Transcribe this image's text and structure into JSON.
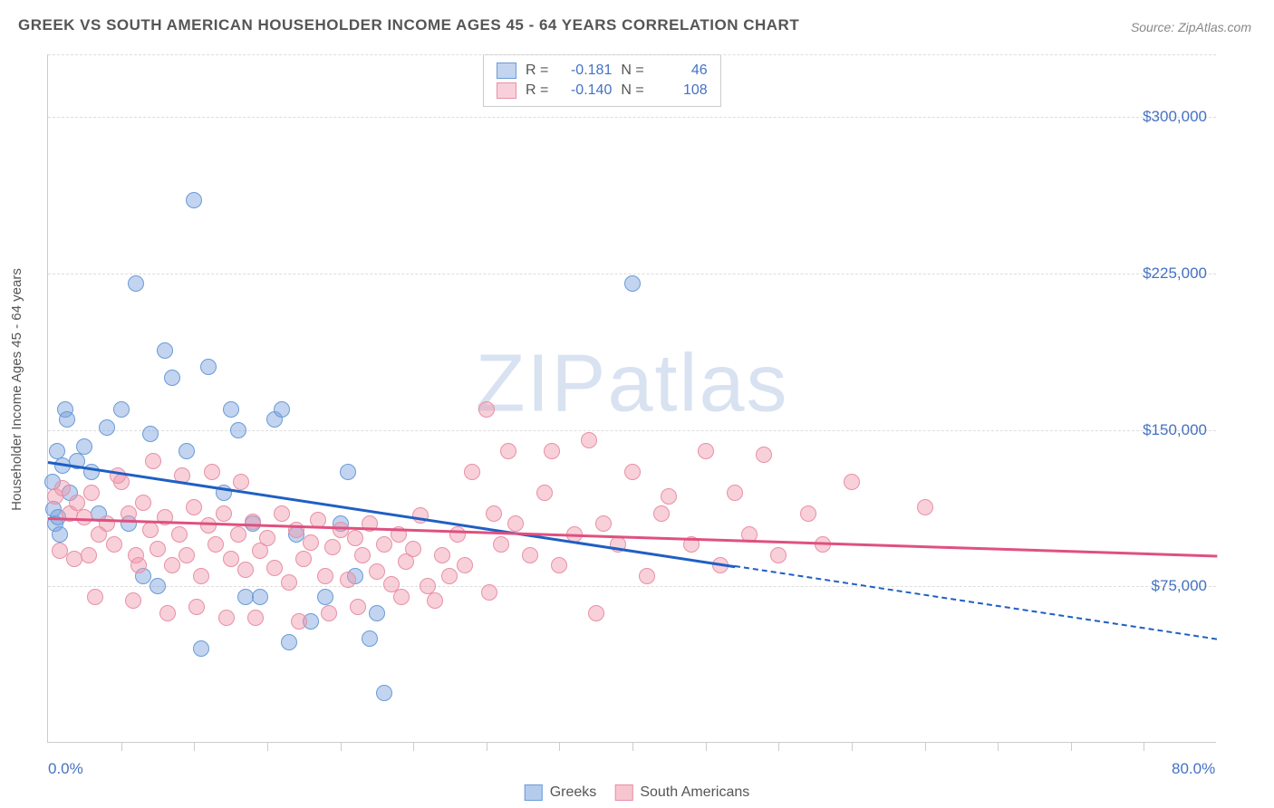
{
  "title": "GREEK VS SOUTH AMERICAN HOUSEHOLDER INCOME AGES 45 - 64 YEARS CORRELATION CHART",
  "source": "Source: ZipAtlas.com",
  "watermark_a": "ZIP",
  "watermark_b": "atlas",
  "y_axis_label": "Householder Income Ages 45 - 64 years",
  "axes": {
    "xlim": [
      0,
      80
    ],
    "ylim": [
      0,
      330000
    ],
    "x_ticks_minor": [
      5,
      10,
      15,
      20,
      25,
      30,
      35,
      40,
      45,
      50,
      55,
      60,
      65,
      70,
      75
    ],
    "x_labels": [
      {
        "v": 0,
        "t": "0.0%"
      },
      {
        "v": 80,
        "t": "80.0%"
      }
    ],
    "y_labels": [
      {
        "v": 75000,
        "t": "$75,000"
      },
      {
        "v": 150000,
        "t": "$150,000"
      },
      {
        "v": 225000,
        "t": "$225,000"
      },
      {
        "v": 300000,
        "t": "$300,000"
      }
    ],
    "grid_color": "#dddddd"
  },
  "series": [
    {
      "name": "Greeks",
      "color_fill": "rgba(120,160,220,0.45)",
      "color_stroke": "#6a9bd8",
      "trend_color": "#1f5fc4",
      "trend": {
        "x1": 0,
        "y1": 135000,
        "x2": 47,
        "y2": 85000,
        "dash_to_x": 80,
        "dash_to_y": 50000
      },
      "R_label": "R =",
      "R": "-0.181",
      "N_label": "N =",
      "N": "46",
      "marker_radius": 9,
      "points": [
        [
          0.3,
          125000
        ],
        [
          0.4,
          112000
        ],
        [
          0.5,
          105000
        ],
        [
          0.7,
          108000
        ],
        [
          0.8,
          100000
        ],
        [
          0.6,
          140000
        ],
        [
          1.0,
          133000
        ],
        [
          1.5,
          120000
        ],
        [
          1.2,
          160000
        ],
        [
          1.3,
          155000
        ],
        [
          2.0,
          135000
        ],
        [
          2.5,
          142000
        ],
        [
          3.0,
          130000
        ],
        [
          3.5,
          110000
        ],
        [
          4.0,
          151000
        ],
        [
          5.0,
          160000
        ],
        [
          6.0,
          220000
        ],
        [
          5.5,
          105000
        ],
        [
          7.0,
          148000
        ],
        [
          8.0,
          188000
        ],
        [
          8.5,
          175000
        ],
        [
          9.5,
          140000
        ],
        [
          10.0,
          260000
        ],
        [
          11.0,
          180000
        ],
        [
          12.0,
          120000
        ],
        [
          12.5,
          160000
        ],
        [
          13.0,
          150000
        ],
        [
          14.0,
          105000
        ],
        [
          14.5,
          70000
        ],
        [
          15.5,
          155000
        ],
        [
          16.0,
          160000
        ],
        [
          17.0,
          100000
        ],
        [
          18.0,
          58000
        ],
        [
          19.0,
          70000
        ],
        [
          20.0,
          105000
        ],
        [
          20.5,
          130000
        ],
        [
          21.0,
          80000
        ],
        [
          22.0,
          50000
        ],
        [
          22.5,
          62000
        ],
        [
          23.0,
          24000
        ],
        [
          16.5,
          48000
        ],
        [
          10.5,
          45000
        ],
        [
          7.5,
          75000
        ],
        [
          6.5,
          80000
        ],
        [
          13.5,
          70000
        ],
        [
          40.0,
          220000
        ]
      ]
    },
    {
      "name": "South Americans",
      "color_fill": "rgba(240,150,170,0.45)",
      "color_stroke": "#e890a5",
      "trend_color": "#e05080",
      "trend": {
        "x1": 0,
        "y1": 108000,
        "x2": 80,
        "y2": 90000
      },
      "R_label": "R =",
      "R": "-0.140",
      "N_label": "N =",
      "N": "108",
      "marker_radius": 9,
      "points": [
        [
          0.5,
          118000
        ],
        [
          1.0,
          122000
        ],
        [
          1.5,
          110000
        ],
        [
          2.0,
          115000
        ],
        [
          2.5,
          108000
        ],
        [
          3.0,
          120000
        ],
        [
          3.5,
          100000
        ],
        [
          4.0,
          105000
        ],
        [
          4.5,
          95000
        ],
        [
          5.0,
          125000
        ],
        [
          5.5,
          110000
        ],
        [
          6.0,
          90000
        ],
        [
          6.5,
          115000
        ],
        [
          7.0,
          102000
        ],
        [
          7.5,
          93000
        ],
        [
          8.0,
          108000
        ],
        [
          8.5,
          85000
        ],
        [
          9.0,
          100000
        ],
        [
          9.5,
          90000
        ],
        [
          10.0,
          113000
        ],
        [
          10.5,
          80000
        ],
        [
          11.0,
          104000
        ],
        [
          11.5,
          95000
        ],
        [
          12.0,
          110000
        ],
        [
          12.5,
          88000
        ],
        [
          13.0,
          100000
        ],
        [
          13.5,
          83000
        ],
        [
          14.0,
          106000
        ],
        [
          14.5,
          92000
        ],
        [
          15.0,
          98000
        ],
        [
          15.5,
          84000
        ],
        [
          16.0,
          110000
        ],
        [
          16.5,
          77000
        ],
        [
          17.0,
          102000
        ],
        [
          17.5,
          88000
        ],
        [
          18.0,
          96000
        ],
        [
          18.5,
          107000
        ],
        [
          19.0,
          80000
        ],
        [
          19.5,
          94000
        ],
        [
          20.0,
          102000
        ],
        [
          20.5,
          78000
        ],
        [
          21.0,
          98000
        ],
        [
          21.5,
          90000
        ],
        [
          22.0,
          105000
        ],
        [
          22.5,
          82000
        ],
        [
          23.0,
          95000
        ],
        [
          23.5,
          76000
        ],
        [
          24.0,
          100000
        ],
        [
          24.5,
          87000
        ],
        [
          25.0,
          93000
        ],
        [
          25.5,
          109000
        ],
        [
          26.0,
          75000
        ],
        [
          26.5,
          68000
        ],
        [
          27.0,
          90000
        ],
        [
          27.5,
          80000
        ],
        [
          28.0,
          100000
        ],
        [
          28.5,
          85000
        ],
        [
          29.0,
          130000
        ],
        [
          30.0,
          160000
        ],
        [
          30.5,
          110000
        ],
        [
          31.0,
          95000
        ],
        [
          31.5,
          140000
        ],
        [
          32.0,
          105000
        ],
        [
          33.0,
          90000
        ],
        [
          34.0,
          120000
        ],
        [
          34.5,
          140000
        ],
        [
          35.0,
          85000
        ],
        [
          36.0,
          100000
        ],
        [
          37.0,
          145000
        ],
        [
          37.5,
          62000
        ],
        [
          38.0,
          105000
        ],
        [
          39.0,
          95000
        ],
        [
          40.0,
          130000
        ],
        [
          41.0,
          80000
        ],
        [
          42.0,
          110000
        ],
        [
          42.5,
          118000
        ],
        [
          44.0,
          95000
        ],
        [
          45.0,
          140000
        ],
        [
          46.0,
          85000
        ],
        [
          47.0,
          120000
        ],
        [
          48.0,
          100000
        ],
        [
          49.0,
          138000
        ],
        [
          50.0,
          90000
        ],
        [
          52.0,
          110000
        ],
        [
          53.0,
          95000
        ],
        [
          55.0,
          125000
        ],
        [
          60.0,
          113000
        ],
        [
          3.2,
          70000
        ],
        [
          5.8,
          68000
        ],
        [
          8.2,
          62000
        ],
        [
          10.2,
          65000
        ],
        [
          12.2,
          60000
        ],
        [
          14.2,
          60000
        ],
        [
          17.2,
          58000
        ],
        [
          19.2,
          62000
        ],
        [
          7.2,
          135000
        ],
        [
          4.8,
          128000
        ],
        [
          9.2,
          128000
        ],
        [
          11.2,
          130000
        ],
        [
          2.8,
          90000
        ],
        [
          1.8,
          88000
        ],
        [
          0.8,
          92000
        ],
        [
          6.2,
          85000
        ],
        [
          13.2,
          125000
        ],
        [
          30.2,
          72000
        ],
        [
          24.2,
          70000
        ],
        [
          21.2,
          65000
        ]
      ]
    }
  ],
  "bottom_legend": [
    {
      "swatch_fill": "rgba(120,160,220,0.55)",
      "swatch_stroke": "#6a9bd8",
      "label": "Greeks"
    },
    {
      "swatch_fill": "rgba(240,150,170,0.55)",
      "swatch_stroke": "#e890a5",
      "label": "South Americans"
    }
  ]
}
